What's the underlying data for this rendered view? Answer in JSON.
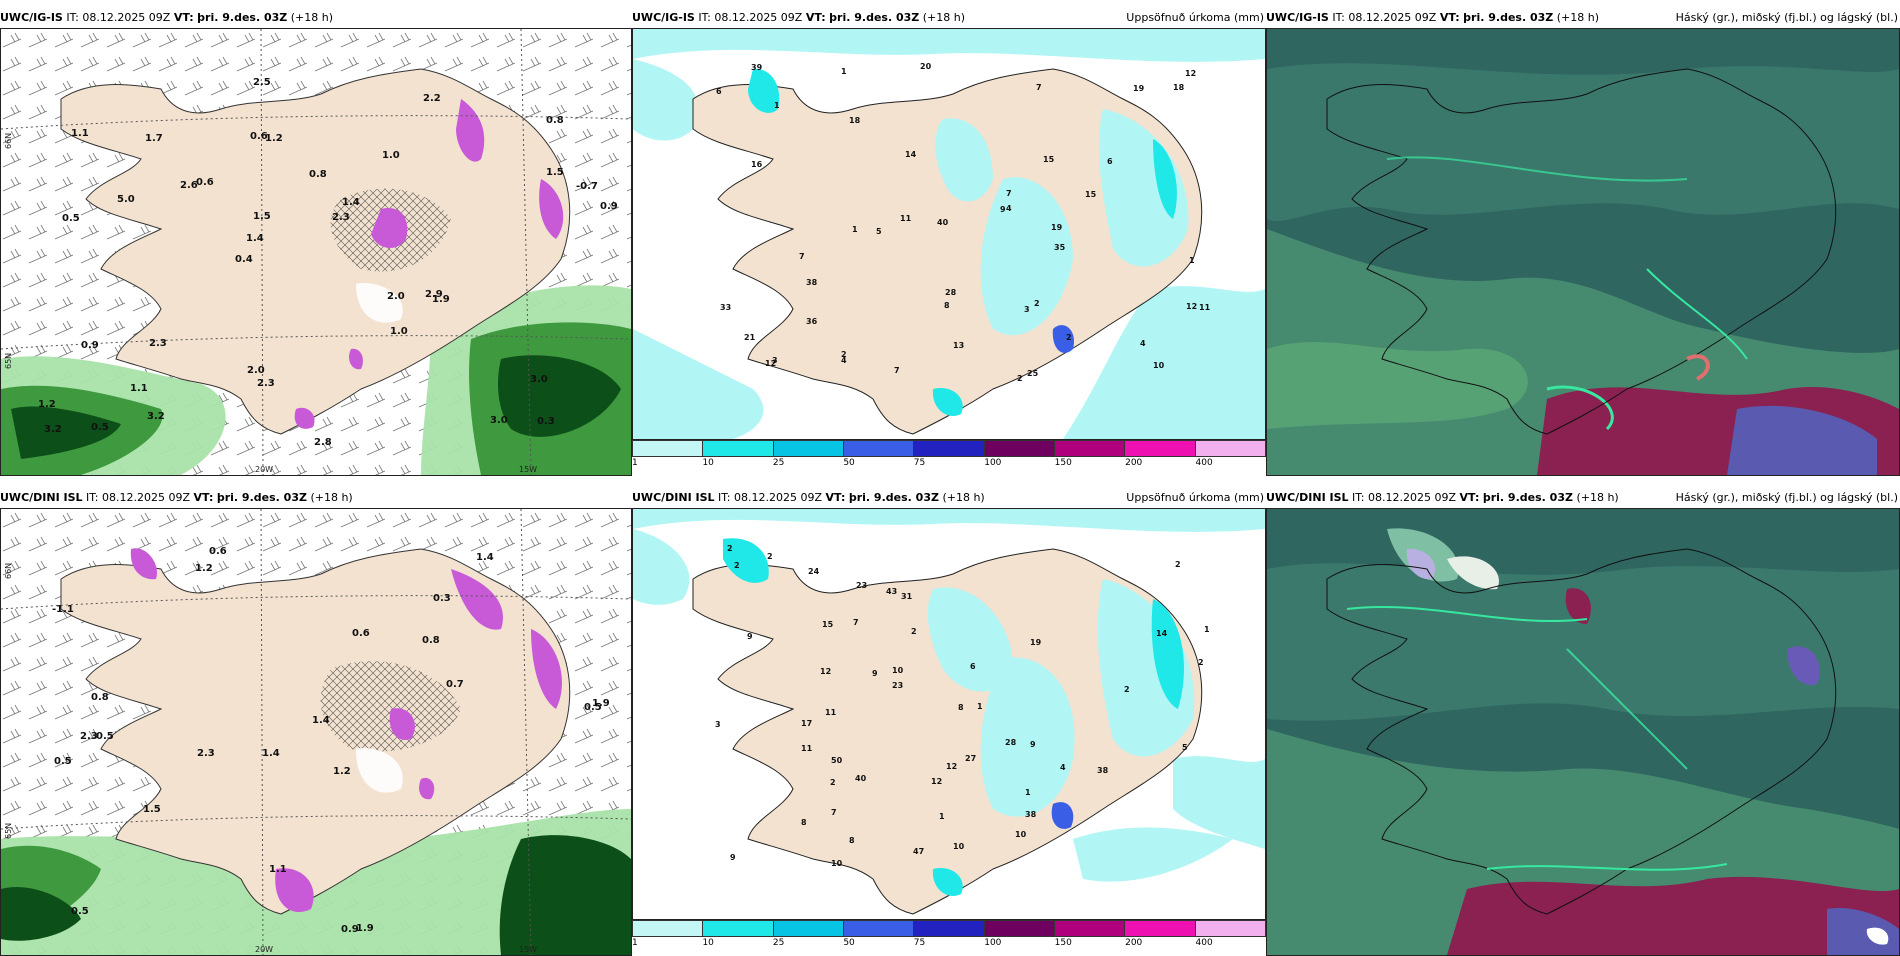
{
  "panels": [
    {
      "model": "UWC/IG-IS",
      "it_label": "IT:",
      "it": "08.12.2025 09Z",
      "vt_label": "VT:",
      "vt": "þri. 9.des. 03Z",
      "lead": "(+18 h)",
      "title": ""
    },
    {
      "model": "UWC/IG-IS",
      "it_label": "IT:",
      "it": "08.12.2025 09Z",
      "vt_label": "VT:",
      "vt": "þri. 9.des. 03Z",
      "lead": "(+18 h)",
      "title": "Uppsöfnuð úrkoma (mm)"
    },
    {
      "model": "UWC/IG-IS",
      "it_label": "IT:",
      "it": "08.12.2025 09Z",
      "vt_label": "VT:",
      "vt": "þri. 9.des. 03Z",
      "lead": "(+18 h)",
      "title": "Háský (gr.), miðský (fj.bl.) og lágský (bl.)"
    },
    {
      "model": "UWC/DINI ISL",
      "it_label": "IT:",
      "it": "08.12.2025 09Z",
      "vt_label": "VT:",
      "vt": "þri. 9.des. 03Z",
      "lead": "(+18 h)",
      "title": ""
    },
    {
      "model": "UWC/DINI ISL",
      "it_label": "IT:",
      "it": "08.12.2025 09Z",
      "vt_label": "VT:",
      "vt": "þri. 9.des. 03Z",
      "lead": "(+18 h)",
      "title": "Uppsöfnuð úrkoma (mm)"
    },
    {
      "model": "UWC/DINI ISL",
      "it_label": "IT:",
      "it": "08.12.2025 09Z",
      "vt_label": "VT:",
      "vt": "þri. 9.des. 03Z",
      "lead": "(+18 h)",
      "title": "Háský (gr.), miðský (fj.bl.) og lágský (bl.)"
    }
  ],
  "axis_labels": {
    "lat66": "66N",
    "lat65": "65N",
    "lon20": "20W",
    "lon15": "15W"
  },
  "colorbar": {
    "ticks": [
      "1",
      "10",
      "25",
      "50",
      "75",
      "100",
      "150",
      "200",
      "400"
    ],
    "colors": [
      "#c4f6f6",
      "#21e8e8",
      "#08c4e4",
      "#3a5ee6",
      "#2222c0",
      "#6e0060",
      "#b0007e",
      "#ee10b0",
      "#f2b0ee"
    ]
  },
  "theme": {
    "land": "#f3e2cf",
    "sea_cyan": "#b2f5f5",
    "cloud_bg": "#2f6660",
    "green_dark": "#0c4f18",
    "magenta": "#c85ad8"
  },
  "wind_values": {
    "ig": [
      "0.3",
      "0.5",
      "0.8",
      "0.4",
      "1.0",
      "0.5",
      "0.6",
      "0.8",
      "0.9",
      "0.6",
      "1.2",
      "1.1",
      "1.2",
      "1.4",
      "1.9",
      "1.1",
      "2.5",
      "0.9",
      "2.0",
      "1.5",
      "1.4",
      "2.0",
      "1.5",
      "1.7",
      "2.2",
      "2.3",
      "3.0",
      "3.0",
      "2.9",
      "2.8",
      "2.6",
      "5.0",
      "1.0",
      "3.2",
      "-0.7",
      "2.3",
      "3.2",
      "2.3"
    ],
    "dini": [
      "0.6",
      "0.3",
      "0.5",
      "1.4",
      "1.2",
      "0.5",
      "-1.1",
      "0.8",
      "0.5",
      "0.6",
      "1.4",
      "0.5",
      "1.2",
      "2.3",
      "0.9",
      "1.9",
      "1.1",
      "1.4",
      "0.7",
      "1.5",
      "0.8",
      "2.3",
      "1.9"
    ]
  },
  "precip_values": {
    "ig": [
      "7",
      "2",
      "2",
      "2",
      "1",
      "1",
      "1",
      "10",
      "20",
      "14",
      "19",
      "13",
      "11",
      "8",
      "7",
      "9",
      "16",
      "4",
      "5",
      "6",
      "3",
      "12",
      "7",
      "12",
      "6",
      "7",
      "33",
      "38",
      "39",
      "35",
      "40",
      "25",
      "28",
      "18",
      "36",
      "19",
      "12",
      "21",
      "15",
      "4",
      "4",
      "15",
      "11",
      "3",
      "18",
      "2",
      "1"
    ],
    "dini": [
      "2",
      "2",
      "3",
      "2",
      "1",
      "1",
      "31",
      "40",
      "9",
      "4",
      "2",
      "1",
      "10",
      "11",
      "12",
      "9",
      "12",
      "8",
      "7",
      "10",
      "2",
      "1",
      "8",
      "11",
      "17",
      "27",
      "50",
      "38",
      "47",
      "43",
      "28",
      "23",
      "14",
      "5",
      "8",
      "12",
      "24",
      "23",
      "38",
      "19",
      "15",
      "10",
      "9",
      "2",
      "2",
      "6",
      "7",
      "2",
      "10",
      "9"
    ]
  }
}
